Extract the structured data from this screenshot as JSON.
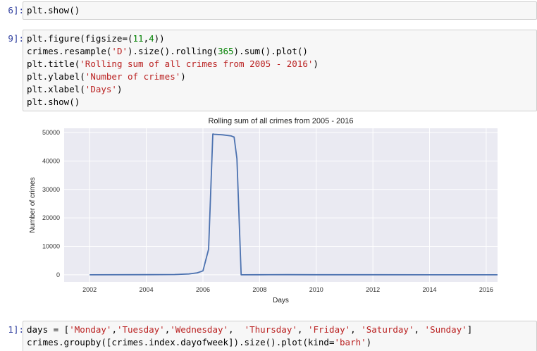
{
  "cells": [
    {
      "prompt": "6]:",
      "lines": [
        [
          {
            "t": "plt.show()"
          }
        ]
      ]
    },
    {
      "prompt": "9]:",
      "lines": [
        [
          {
            "t": "plt.figure(figsize=("
          },
          {
            "t": "11",
            "c": "n"
          },
          {
            "t": ","
          },
          {
            "t": "4",
            "c": "n"
          },
          {
            "t": "))"
          }
        ],
        [
          {
            "t": "crimes.resample("
          },
          {
            "t": "'D'",
            "c": "s"
          },
          {
            "t": ").size().rolling("
          },
          {
            "t": "365",
            "c": "n"
          },
          {
            "t": ").sum().plot()"
          }
        ],
        [
          {
            "t": "plt.title("
          },
          {
            "t": "'Rolling sum of all crimes from 2005 - 2016'",
            "c": "s"
          },
          {
            "t": ")"
          }
        ],
        [
          {
            "t": "plt.ylabel("
          },
          {
            "t": "'Number of crimes'",
            "c": "s"
          },
          {
            "t": ")"
          }
        ],
        [
          {
            "t": "plt.xlabel("
          },
          {
            "t": "'Days'",
            "c": "s"
          },
          {
            "t": ")"
          }
        ],
        [
          {
            "t": "plt.show()"
          }
        ]
      ]
    },
    {
      "prompt": "1]:",
      "lines": [
        [
          {
            "t": "days = ["
          },
          {
            "t": "'Monday'",
            "c": "s"
          },
          {
            "t": ","
          },
          {
            "t": "'Tuesday'",
            "c": "s"
          },
          {
            "t": ","
          },
          {
            "t": "'Wednesday'",
            "c": "s"
          },
          {
            "t": ",  "
          },
          {
            "t": "'Thursday'",
            "c": "s"
          },
          {
            "t": ", "
          },
          {
            "t": "'Friday'",
            "c": "s"
          },
          {
            "t": ", "
          },
          {
            "t": "'Saturday'",
            "c": "s"
          },
          {
            "t": ", "
          },
          {
            "t": "'Sunday'",
            "c": "s"
          },
          {
            "t": "]"
          }
        ],
        [
          {
            "t": "crimes.groupby([crimes.index.dayofweek]).size().plot(kind="
          },
          {
            "t": "'barh'",
            "c": "s"
          },
          {
            "t": ")"
          }
        ]
      ]
    }
  ],
  "chart_data": {
    "type": "line",
    "title": "Rolling sum of all crimes from 2005 - 2016",
    "xlabel": "Days",
    "ylabel": "Number of crimes",
    "xlim": [
      2001.1,
      2016.4
    ],
    "ylim": [
      -2500,
      51500
    ],
    "xticks": [
      2002,
      2004,
      2006,
      2008,
      2010,
      2012,
      2014,
      2016
    ],
    "yticks": [
      0,
      10000,
      20000,
      30000,
      40000,
      50000
    ],
    "grid": true,
    "line_color": "#4c72b0",
    "series": [
      {
        "x": [
          2002.0,
          2004.0,
          2005.0,
          2005.5,
          2005.8,
          2006.0,
          2006.2,
          2006.35,
          2006.4,
          2006.7,
          2007.0,
          2007.1,
          2007.2,
          2007.35,
          2007.4,
          2008.0,
          2009.0,
          2010.0,
          2012.0,
          2014.0,
          2016.0,
          2016.4
        ],
        "y": [
          0,
          50,
          100,
          300,
          700,
          1400,
          9000,
          49500,
          49400,
          49200,
          48800,
          48400,
          40800,
          0,
          0,
          30,
          60,
          30,
          20,
          10,
          10,
          10
        ]
      }
    ]
  }
}
